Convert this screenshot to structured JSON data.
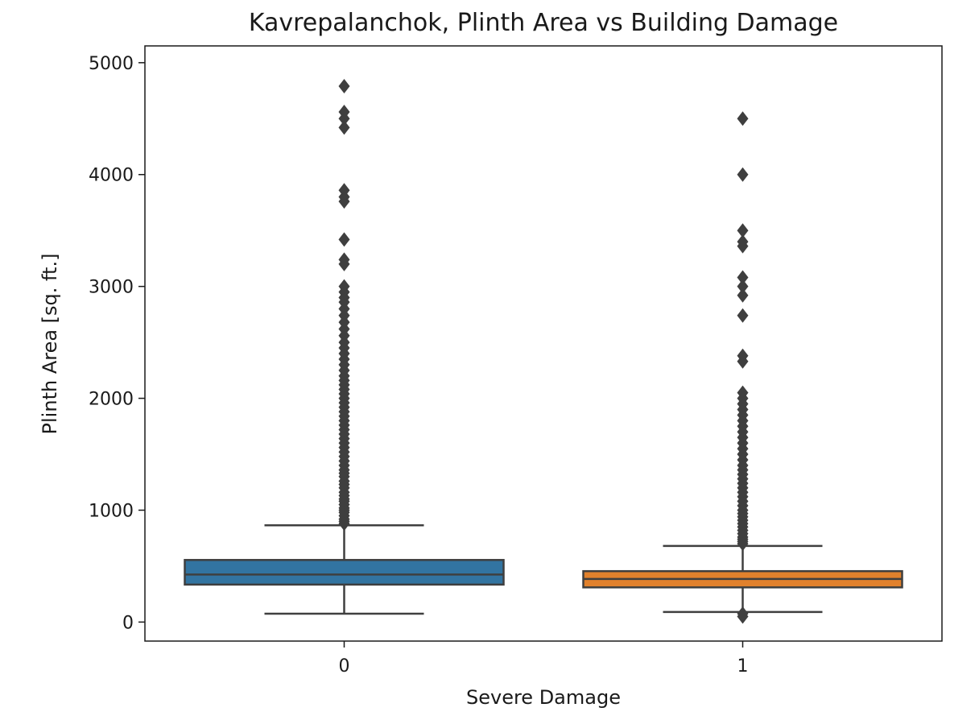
{
  "chart_data": {
    "type": "box",
    "title": "Kavrepalanchok, Plinth Area vs Building Damage",
    "xlabel": "Severe Damage",
    "ylabel": "Plinth Area [sq. ft.]",
    "categories": [
      "0",
      "1"
    ],
    "ylim": [
      -170,
      5150
    ],
    "yticks": [
      0,
      1000,
      2000,
      3000,
      4000,
      5000
    ],
    "grid": false,
    "colors": {
      "box_0": "#3274a1",
      "box_1": "#e1812c",
      "line": "#3f3f3f",
      "outlier": "#3f3f3f"
    },
    "boxes": [
      {
        "category": "0",
        "whisker_low": 75,
        "q1": 335,
        "median": 425,
        "q3": 555,
        "whisker_high": 865,
        "outliers": [
          880,
          900,
          920,
          950,
          980,
          1000,
          1020,
          1050,
          1080,
          1100,
          1130,
          1160,
          1200,
          1230,
          1260,
          1300,
          1330,
          1360,
          1400,
          1440,
          1480,
          1520,
          1560,
          1600,
          1640,
          1680,
          1720,
          1760,
          1800,
          1840,
          1880,
          1920,
          1960,
          2000,
          2040,
          2080,
          2120,
          2160,
          2200,
          2250,
          2300,
          2350,
          2400,
          2450,
          2500,
          2560,
          2620,
          2680,
          2740,
          2800,
          2860,
          2900,
          2950,
          3000,
          3200,
          3240,
          3420,
          3760,
          3800,
          3860,
          4420,
          4500,
          4560,
          4790
        ]
      },
      {
        "category": "1",
        "whisker_low": 90,
        "q1": 310,
        "median": 385,
        "q3": 455,
        "whisker_high": 680,
        "outliers": [
          50,
          75,
          700,
          720,
          740,
          760,
          790,
          820,
          850,
          880,
          910,
          940,
          970,
          1000,
          1040,
          1080,
          1120,
          1160,
          1200,
          1240,
          1280,
          1320,
          1360,
          1400,
          1450,
          1500,
          1550,
          1600,
          1650,
          1700,
          1750,
          1800,
          1850,
          1900,
          1950,
          2000,
          2050,
          2330,
          2380,
          2740,
          2920,
          3000,
          3080,
          3360,
          3400,
          3500,
          4000,
          4500
        ]
      }
    ]
  }
}
